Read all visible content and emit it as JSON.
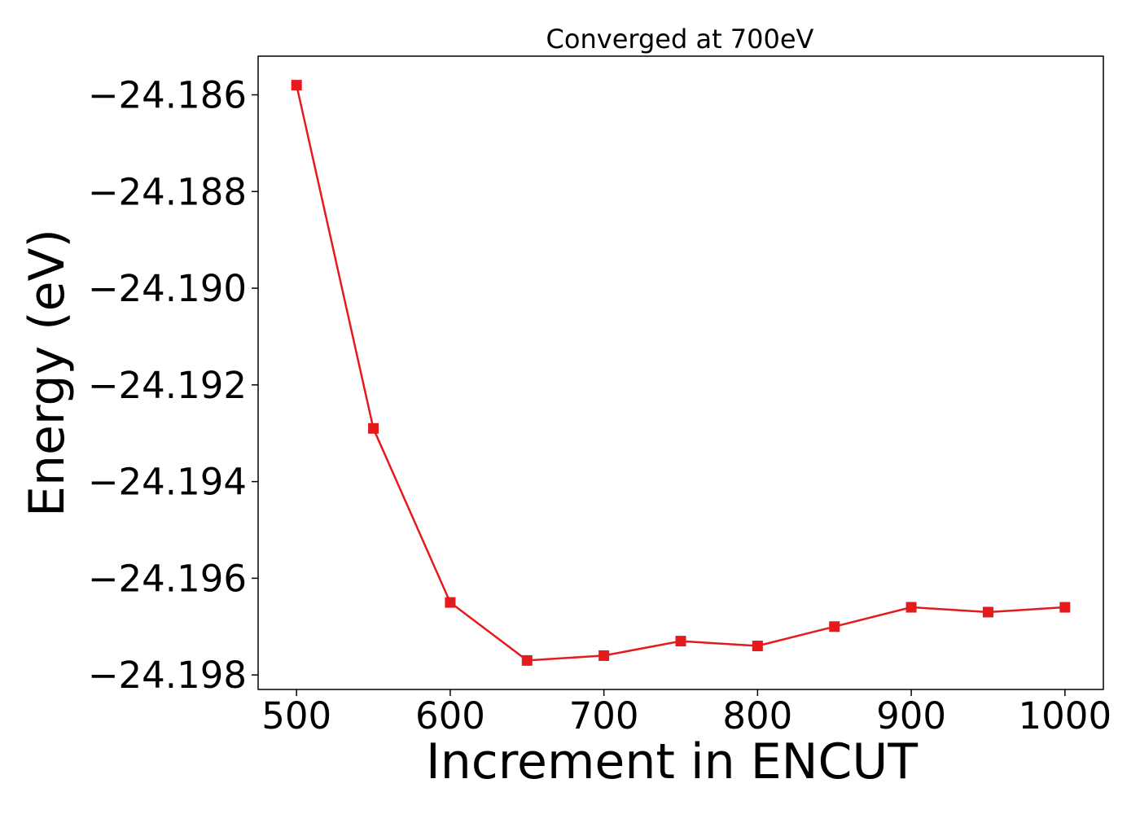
{
  "chart_data": {
    "type": "line",
    "title": "Converged at 700eV",
    "xlabel": "Increment in ENCUT",
    "ylabel": "Energy (eV)",
    "xlim": [
      475,
      1025
    ],
    "ylim": [
      -24.1983,
      -24.1852
    ],
    "x_ticks": [
      500,
      600,
      700,
      800,
      900,
      1000
    ],
    "y_ticks": [
      -24.186,
      -24.188,
      -24.19,
      -24.192,
      -24.194,
      -24.196,
      -24.198
    ],
    "y_tick_labels": [
      "−24.186",
      "−24.188",
      "−24.190",
      "−24.192",
      "−24.194",
      "−24.196",
      "−24.198"
    ],
    "grid": false,
    "series": [
      {
        "color": "#e41a1c",
        "marker": "square",
        "x": [
          500,
          550,
          600,
          650,
          700,
          750,
          800,
          850,
          900,
          950,
          1000
        ],
        "y": [
          -24.1858,
          -24.1929,
          -24.1965,
          -24.1977,
          -24.1976,
          -24.1973,
          -24.1974,
          -24.197,
          -24.1966,
          -24.1967,
          -24.1966
        ]
      }
    ]
  }
}
